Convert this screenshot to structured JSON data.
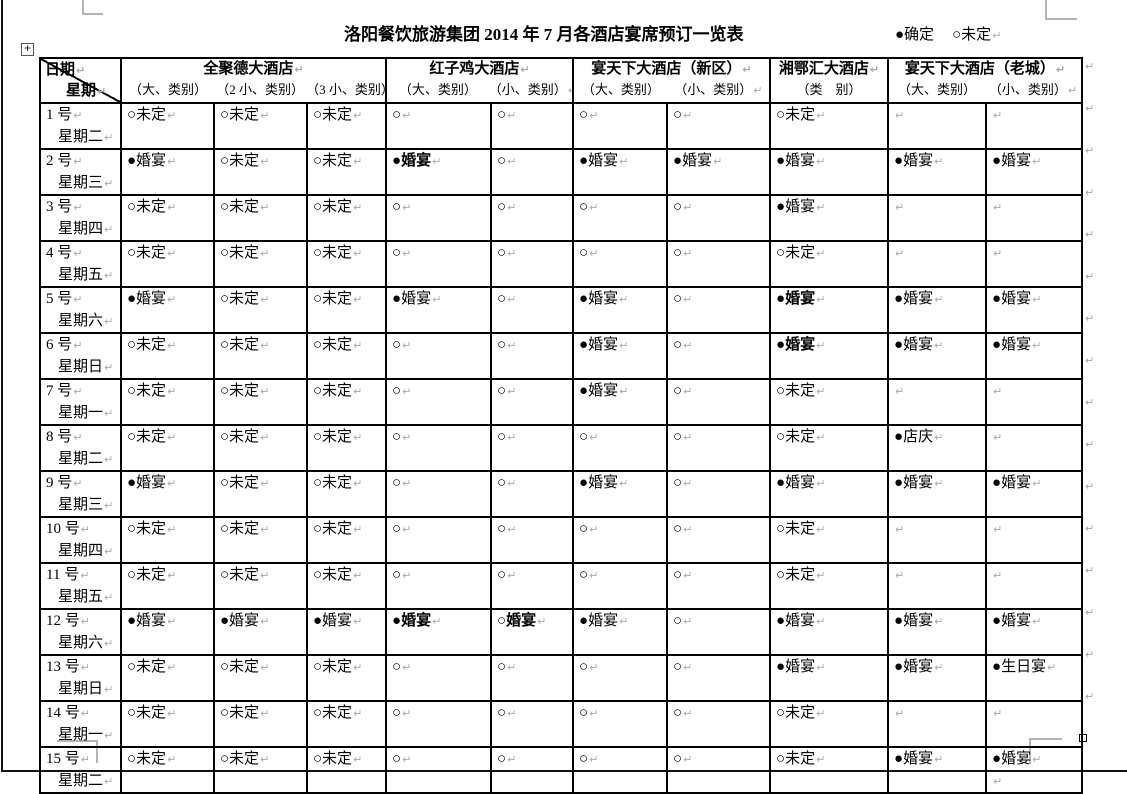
{
  "page": {
    "title": "洛阳餐饮旅游集团 2014 年 7 月各酒店宴席预订一览表",
    "legend": {
      "confirmed": "●确定",
      "undecided": "○未定"
    }
  },
  "icons": {
    "paragraph_mark": "↵",
    "move_handle": "+"
  },
  "colors": {
    "table_border": "#000000",
    "paragraph_mark": "#a9a9a9",
    "text": "#000000"
  },
  "table": {
    "corner": {
      "top": "日期",
      "bottom": "星期"
    },
    "groups": [
      {
        "name": "全聚德大酒店",
        "subs": [
          "（大、类别）",
          "（2 小、类别）",
          "（3 小、类别）"
        ]
      },
      {
        "name": "红子鸡大酒店",
        "subs": [
          "（大、类别）",
          "（小、类别）"
        ]
      },
      {
        "name": "宴天下大酒店（新区）",
        "subs": [
          "（大、类别）",
          "（小、类别）"
        ]
      },
      {
        "name": "湘鄂汇大酒店",
        "subs": [
          "（类　别）"
        ]
      },
      {
        "name": "宴天下大酒店（老城）",
        "subs": [
          "（大、类别）",
          "（小、类别）"
        ]
      }
    ],
    "rows": [
      {
        "date": "1 号",
        "weekday": "星期二",
        "cells": [
          "○未定",
          "○未定",
          "○未定",
          "○",
          "○",
          "○",
          "○",
          "○未定",
          "",
          ""
        ]
      },
      {
        "date": "2 号",
        "weekday": "星期三",
        "cells": [
          "●婚宴",
          "○未定",
          "○未定",
          {
            "text": "●婚宴",
            "bold": true
          },
          "○",
          "●婚宴",
          "●婚宴",
          "●婚宴",
          "●婚宴",
          "●婚宴"
        ]
      },
      {
        "date": "3 号",
        "weekday": "星期四",
        "cells": [
          "○未定",
          "○未定",
          "○未定",
          "○",
          "○",
          "○",
          "○",
          "●婚宴",
          "",
          ""
        ]
      },
      {
        "date": "4 号",
        "weekday": "星期五",
        "cells": [
          "○未定",
          "○未定",
          "○未定",
          "○",
          "○",
          "○",
          "○",
          "○未定",
          "",
          ""
        ]
      },
      {
        "date": "5 号",
        "weekday": "星期六",
        "cells": [
          "●婚宴",
          "○未定",
          "○未定",
          "●婚宴",
          "○",
          "●婚宴",
          "○",
          {
            "text": "●婚宴",
            "bold": true
          },
          "●婚宴",
          "●婚宴"
        ]
      },
      {
        "date": "6 号",
        "weekday": "星期日",
        "cells": [
          "○未定",
          "○未定",
          "○未定",
          "○",
          "○",
          "●婚宴",
          "○",
          {
            "text": "●婚宴",
            "bold": true
          },
          "●婚宴",
          "●婚宴"
        ]
      },
      {
        "date": "7 号",
        "weekday": "星期一",
        "cells": [
          "○未定",
          "○未定",
          "○未定",
          "○",
          "○",
          "●婚宴",
          "○",
          "○未定",
          "",
          ""
        ]
      },
      {
        "date": "8 号",
        "weekday": "星期二",
        "cells": [
          "○未定",
          "○未定",
          "○未定",
          "○",
          "○",
          "○",
          "○",
          "○未定",
          "●店庆",
          ""
        ]
      },
      {
        "date": "9 号",
        "weekday": "星期三",
        "cells": [
          "●婚宴",
          "○未定",
          "○未定",
          "○",
          "○",
          "●婚宴",
          "○",
          "●婚宴",
          "●婚宴",
          "●婚宴"
        ]
      },
      {
        "date": "10 号",
        "weekday": "星期四",
        "cells": [
          "○未定",
          "○未定",
          "○未定",
          "○",
          "○",
          "○",
          "○",
          "○未定",
          "",
          ""
        ]
      },
      {
        "date": "11 号",
        "weekday": "星期五",
        "cells": [
          "○未定",
          "○未定",
          "○未定",
          "○",
          "○",
          "○",
          "○",
          "○未定",
          "",
          ""
        ]
      },
      {
        "date": "12 号",
        "weekday": "星期六",
        "cells": [
          "●婚宴",
          "●婚宴",
          "●婚宴",
          {
            "text": "●婚宴",
            "bold": true
          },
          {
            "text": "○婚宴",
            "bold": true
          },
          "●婚宴",
          "○",
          "●婚宴",
          "●婚宴",
          "●婚宴"
        ]
      },
      {
        "date": "13 号",
        "weekday": "星期日",
        "cells": [
          "○未定",
          "○未定",
          "○未定",
          "○",
          "○",
          "○",
          "○",
          "●婚宴",
          "●婚宴",
          "●生日宴"
        ]
      },
      {
        "date": "14 号",
        "weekday": "星期一",
        "cells": [
          "○未定",
          "○未定",
          "○未定",
          "○",
          "○",
          "○",
          "○",
          "○未定",
          "",
          ""
        ]
      },
      {
        "date": "15 号",
        "weekday": "星期二",
        "cells": [
          "○未定",
          "○未定",
          "○未定",
          "○",
          "○",
          "○",
          "○",
          "○未定",
          "●婚宴",
          {
            "text": "●婚宴",
            "extra_mark": true
          }
        ]
      }
    ]
  }
}
